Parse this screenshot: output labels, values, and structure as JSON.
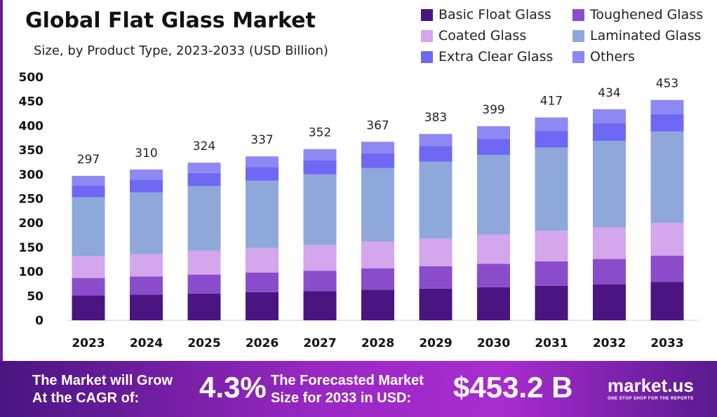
{
  "chart_data": {
    "type": "bar",
    "stacked": true,
    "title": "Global Flat Glass Market",
    "subtitle": "Size, by Product Type, 2023-2033 (USD Billion)",
    "categories": [
      "2023",
      "2024",
      "2025",
      "2026",
      "2027",
      "2028",
      "2029",
      "2030",
      "2031",
      "2032",
      "2033"
    ],
    "totals": [
      297,
      310,
      324,
      337,
      352,
      367,
      383,
      399,
      417,
      434,
      453
    ],
    "series": [
      {
        "name": "Basic Float Glass",
        "color": "#4a1580",
        "values": [
          51,
          53,
          55,
          58,
          60,
          63,
          65,
          68,
          71,
          74,
          79
        ]
      },
      {
        "name": "Toughened Glass",
        "color": "#8b4ccc",
        "values": [
          36,
          37,
          39,
          40,
          42,
          44,
          46,
          48,
          50,
          52,
          54
        ]
      },
      {
        "name": "Coated Glass",
        "color": "#d4a6ec",
        "values": [
          45,
          46,
          49,
          51,
          53,
          55,
          57,
          60,
          63,
          65,
          67
        ]
      },
      {
        "name": "Laminated Glass",
        "color": "#8fa8dc",
        "values": [
          121,
          127,
          133,
          138,
          145,
          151,
          158,
          164,
          171,
          178,
          188
        ]
      },
      {
        "name": "Extra Clear Glass",
        "color": "#6e68f4",
        "values": [
          24,
          26,
          27,
          28,
          29,
          30,
          32,
          33,
          34,
          36,
          36
        ]
      },
      {
        "name": "Others",
        "color": "#8d88f2",
        "values": [
          20,
          21,
          21,
          22,
          23,
          24,
          25,
          26,
          28,
          29,
          29
        ]
      }
    ],
    "yticks": [
      0,
      50,
      100,
      150,
      200,
      250,
      300,
      350,
      400,
      450,
      500
    ],
    "ylim": [
      0,
      500
    ],
    "grid": false,
    "legend": "top-right"
  },
  "footer": {
    "cagr_label_1": "The Market will Grow",
    "cagr_label_2": "At the CAGR of:",
    "cagr_value": "4.3%",
    "forecast_label_1": "The Forecasted Market",
    "forecast_label_2": "Size for 2033 in USD:",
    "forecast_value": "$453.2 B",
    "brand": "market.us",
    "brand_tagline": "ONE STOP SHOP FOR THE REPORTS"
  }
}
